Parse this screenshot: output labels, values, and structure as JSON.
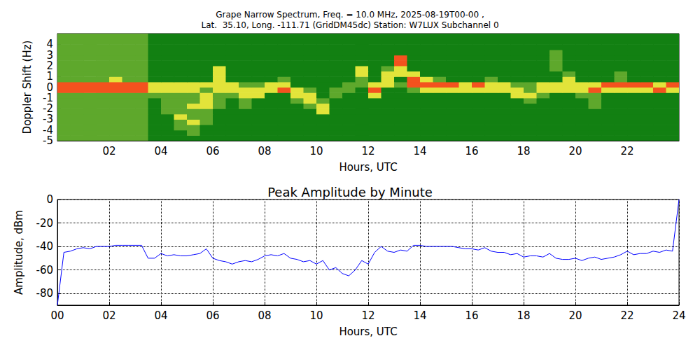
{
  "chart_data": [
    {
      "type": "heatmap",
      "title": "Grape Narrow Spectrum, Freq. = 10.0 MHz, 2025-08-19T00-00 ,",
      "subtitle": "Lat.  35.10, Long. -111.71 (GridDM45dc) Station: W7LUX Subchannel 0",
      "x_label": "Hours, UTC",
      "y_label": "Doppler Shift (Hz)",
      "x_bins": [
        0,
        0.5,
        1,
        1.5,
        2,
        2.5,
        3,
        3.5,
        4,
        4.5,
        5,
        5.5,
        6,
        6.5,
        7,
        7.5,
        8,
        8.5,
        9,
        9.5,
        10,
        10.5,
        11,
        11.5,
        12,
        12.5,
        13,
        13.5,
        14,
        14.5,
        15,
        15.5,
        16,
        16.5,
        17,
        17.5,
        18,
        18.5,
        19,
        19.5,
        20,
        20.5,
        21,
        21.5,
        22,
        22.5,
        23,
        23.5,
        24
      ],
      "y_bins": [
        -5,
        -4.5,
        -4,
        -3.5,
        -3,
        -2.5,
        -2,
        -1.5,
        -1,
        -0.5,
        0,
        0.5,
        1,
        1.5,
        2,
        2.5,
        3,
        3.5,
        4,
        4.5,
        5
      ],
      "cells": [
        [
          1,
          1,
          1,
          1,
          1,
          1,
          1,
          0,
          0,
          0,
          0,
          0,
          0,
          0,
          0,
          0,
          0,
          0,
          0,
          0,
          0,
          0,
          0,
          0,
          0,
          0,
          0,
          0,
          0,
          0,
          0,
          0,
          0,
          0,
          0,
          0,
          0,
          0,
          0,
          0,
          0,
          0,
          0,
          0,
          0,
          0,
          0,
          0
        ],
        [
          1,
          1,
          1,
          1,
          1,
          1,
          1,
          0,
          0,
          0,
          1,
          0,
          0,
          0,
          0,
          0,
          0,
          0,
          0,
          0,
          0,
          0,
          0,
          0,
          0,
          0,
          0,
          0,
          0,
          0,
          0,
          0,
          0,
          0,
          0,
          0,
          0,
          0,
          0,
          0,
          0,
          0,
          0,
          0,
          0,
          0,
          0,
          0
        ],
        [
          1,
          1,
          1,
          1,
          1,
          1,
          1,
          0,
          0,
          1,
          1,
          0,
          0,
          0,
          0,
          0,
          0,
          0,
          0,
          0,
          0,
          0,
          0,
          0,
          0,
          0,
          0,
          0,
          0,
          0,
          0,
          0,
          0,
          0,
          0,
          0,
          0,
          0,
          0,
          0,
          0,
          0,
          0,
          0,
          0,
          0,
          0,
          0
        ],
        [
          1,
          1,
          1,
          1,
          1,
          1,
          1,
          0,
          0,
          1,
          2,
          1,
          0,
          0,
          0,
          0,
          0,
          0,
          0,
          0,
          0,
          0,
          0,
          0,
          0,
          0,
          0,
          0,
          0,
          0,
          0,
          0,
          0,
          0,
          0,
          0,
          0,
          0,
          0,
          0,
          0,
          0,
          0,
          0,
          0,
          0,
          0,
          0
        ],
        [
          1,
          1,
          1,
          1,
          1,
          1,
          1,
          0,
          0,
          2,
          1,
          1,
          0,
          0,
          0,
          0,
          0,
          0,
          0,
          0,
          0,
          0,
          0,
          0,
          0,
          0,
          0,
          0,
          0,
          0,
          0,
          0,
          0,
          0,
          0,
          0,
          0,
          0,
          0,
          0,
          0,
          0,
          0,
          0,
          0,
          0,
          0,
          0
        ],
        [
          1,
          1,
          1,
          1,
          1,
          1,
          1,
          0,
          1,
          1,
          1,
          1,
          0,
          0,
          0,
          0,
          0,
          0,
          0,
          0,
          2,
          0,
          0,
          0,
          0,
          0,
          0,
          0,
          0,
          0,
          0,
          0,
          0,
          0,
          0,
          0,
          0,
          0,
          0,
          0,
          0,
          0,
          0,
          0,
          0,
          0,
          0,
          0
        ],
        [
          1,
          1,
          1,
          1,
          1,
          1,
          1,
          0,
          1,
          1,
          2,
          2,
          1,
          0,
          1,
          0,
          0,
          0,
          0,
          1,
          2,
          0,
          0,
          0,
          0,
          0,
          0,
          0,
          0,
          0,
          0,
          0,
          0,
          0,
          0,
          0,
          0,
          0,
          0,
          0,
          0,
          1,
          0,
          0,
          0,
          0,
          0,
          0
        ],
        [
          1,
          1,
          1,
          1,
          1,
          1,
          1,
          0,
          1,
          1,
          1,
          2,
          1,
          0,
          1,
          0,
          0,
          0,
          1,
          2,
          1,
          0,
          0,
          0,
          0,
          0,
          0,
          0,
          0,
          0,
          0,
          0,
          0,
          0,
          0,
          0,
          1,
          0,
          0,
          0,
          0,
          1,
          0,
          0,
          0,
          0,
          0,
          0
        ],
        [
          1,
          1,
          1,
          1,
          1,
          1,
          1,
          1,
          1,
          1,
          1,
          2,
          1,
          1,
          2,
          2,
          0,
          0,
          2,
          2,
          0,
          1,
          0,
          0,
          2,
          0,
          0,
          0,
          0,
          0,
          0,
          0,
          0,
          0,
          0,
          2,
          2,
          1,
          0,
          0,
          1,
          1,
          0,
          0,
          0,
          0,
          0,
          0
        ],
        [
          3,
          3,
          3,
          3,
          3,
          3,
          3,
          2,
          2,
          2,
          2,
          1,
          2,
          2,
          2,
          2,
          2,
          3,
          2,
          1,
          0,
          1,
          1,
          0,
          3,
          0,
          0,
          1,
          2,
          2,
          2,
          2,
          2,
          2,
          2,
          2,
          1,
          2,
          2,
          2,
          2,
          3,
          2,
          2,
          2,
          2,
          3,
          2
        ],
        [
          3,
          3,
          3,
          3,
          3,
          3,
          3,
          2,
          2,
          2,
          2,
          2,
          2,
          2,
          1,
          1,
          2,
          2,
          0,
          0,
          0,
          0,
          1,
          1,
          2,
          2,
          1,
          3,
          3,
          3,
          3,
          2,
          3,
          2,
          2,
          1,
          1,
          2,
          2,
          2,
          2,
          2,
          3,
          3,
          3,
          3,
          2,
          3
        ],
        [
          1,
          1,
          1,
          1,
          2,
          1,
          1,
          0,
          0,
          0,
          0,
          0,
          2,
          0,
          0,
          0,
          0,
          1,
          0,
          0,
          0,
          0,
          0,
          1,
          0,
          2,
          0,
          3,
          2,
          1,
          0,
          0,
          0,
          1,
          0,
          0,
          0,
          0,
          0,
          2,
          0,
          0,
          0,
          1,
          0,
          0,
          0,
          0
        ],
        [
          1,
          1,
          1,
          1,
          1,
          1,
          1,
          0,
          0,
          0,
          0,
          0,
          2,
          0,
          0,
          0,
          0,
          0,
          0,
          0,
          0,
          0,
          0,
          2,
          0,
          2,
          2,
          2,
          0,
          0,
          0,
          0,
          0,
          0,
          0,
          0,
          0,
          0,
          0,
          1,
          0,
          0,
          0,
          1,
          0,
          0,
          0,
          0
        ],
        [
          1,
          1,
          1,
          1,
          1,
          1,
          1,
          0,
          0,
          0,
          0,
          0,
          2,
          0,
          0,
          0,
          0,
          0,
          0,
          0,
          0,
          0,
          0,
          2,
          0,
          1,
          2,
          0,
          0,
          0,
          0,
          0,
          0,
          0,
          0,
          0,
          0,
          0,
          1,
          0,
          0,
          0,
          0,
          0,
          0,
          0,
          0,
          0
        ],
        [
          1,
          1,
          1,
          1,
          1,
          1,
          1,
          0,
          0,
          0,
          0,
          0,
          0,
          0,
          0,
          0,
          0,
          0,
          0,
          0,
          0,
          0,
          0,
          0,
          0,
          0,
          3,
          0,
          0,
          0,
          0,
          0,
          0,
          0,
          0,
          0,
          0,
          0,
          1,
          0,
          0,
          0,
          0,
          0,
          0,
          0,
          0,
          0
        ],
        [
          1,
          1,
          1,
          1,
          1,
          1,
          1,
          0,
          0,
          0,
          0,
          0,
          0,
          0,
          0,
          0,
          0,
          0,
          0,
          0,
          0,
          0,
          0,
          0,
          0,
          0,
          3,
          0,
          0,
          0,
          0,
          0,
          0,
          0,
          0,
          0,
          0,
          0,
          1,
          0,
          0,
          0,
          0,
          0,
          0,
          0,
          0,
          0
        ],
        [
          1,
          1,
          1,
          1,
          1,
          1,
          1,
          0,
          0,
          0,
          0,
          0,
          0,
          0,
          0,
          0,
          0,
          0,
          0,
          0,
          0,
          0,
          0,
          0,
          0,
          0,
          0,
          0,
          0,
          0,
          0,
          0,
          0,
          0,
          0,
          0,
          0,
          0,
          1,
          0,
          0,
          0,
          0,
          0,
          0,
          0,
          0,
          0
        ],
        [
          1,
          1,
          1,
          1,
          1,
          1,
          1,
          0,
          0,
          0,
          0,
          0,
          0,
          0,
          0,
          0,
          0,
          0,
          0,
          0,
          0,
          0,
          0,
          0,
          0,
          0,
          0,
          0,
          0,
          0,
          0,
          0,
          0,
          0,
          0,
          0,
          0,
          0,
          0,
          0,
          0,
          0,
          0,
          0,
          0,
          0,
          0,
          0
        ],
        [
          1,
          1,
          1,
          1,
          1,
          1,
          1,
          0,
          0,
          0,
          0,
          0,
          0,
          0,
          0,
          0,
          0,
          0,
          0,
          0,
          0,
          0,
          0,
          0,
          0,
          0,
          0,
          0,
          0,
          0,
          0,
          0,
          0,
          0,
          0,
          0,
          0,
          0,
          0,
          0,
          0,
          0,
          0,
          0,
          0,
          0,
          0,
          0
        ],
        [
          1,
          1,
          1,
          1,
          1,
          1,
          1,
          0,
          0,
          0,
          0,
          0,
          0,
          0,
          0,
          0,
          0,
          0,
          0,
          0,
          0,
          0,
          0,
          0,
          0,
          0,
          0,
          0,
          0,
          0,
          0,
          0,
          0,
          0,
          0,
          0,
          0,
          0,
          0,
          0,
          0,
          0,
          0,
          0,
          0,
          0,
          0,
          0
        ]
      ],
      "colors": [
        "#128012",
        "#5ea82c",
        "#e2e43a",
        "#f4521e"
      ],
      "xlim": [
        0,
        24
      ],
      "xticks": [
        {
          "value": 2,
          "label": "02"
        },
        {
          "value": 4,
          "label": "04"
        },
        {
          "value": 6,
          "label": "06"
        },
        {
          "value": 8,
          "label": "08"
        },
        {
          "value": 10,
          "label": "10"
        },
        {
          "value": 12,
          "label": "12"
        },
        {
          "value": 14,
          "label": "14"
        },
        {
          "value": 16,
          "label": "16"
        },
        {
          "value": 18,
          "label": "18"
        },
        {
          "value": 20,
          "label": "20"
        },
        {
          "value": 22,
          "label": "22"
        }
      ],
      "ylim": [
        -5,
        5
      ],
      "yticks": [
        -5,
        -4,
        -3,
        -2,
        -1,
        0,
        1,
        2,
        3,
        4
      ],
      "grid": false
    },
    {
      "type": "line",
      "title": "Peak Amplitude by Minute",
      "x_label": "Hours, UTC",
      "y_label": "Amplitude, dBm",
      "x": [
        0,
        0.25,
        0.5,
        0.75,
        1,
        1.25,
        1.5,
        1.75,
        2,
        2.25,
        2.5,
        2.75,
        3,
        3.25,
        3.5,
        3.75,
        4,
        4.25,
        4.5,
        4.75,
        5,
        5.25,
        5.5,
        5.75,
        6,
        6.25,
        6.5,
        6.75,
        7,
        7.25,
        7.5,
        7.75,
        8,
        8.25,
        8.5,
        8.75,
        9,
        9.25,
        9.5,
        9.75,
        10,
        10.25,
        10.5,
        10.75,
        11,
        11.25,
        11.5,
        11.75,
        12,
        12.25,
        12.5,
        12.75,
        13,
        13.25,
        13.5,
        13.75,
        14,
        14.25,
        14.5,
        14.75,
        15,
        15.25,
        15.5,
        15.75,
        16,
        16.25,
        16.5,
        16.75,
        17,
        17.25,
        17.5,
        17.75,
        18,
        18.25,
        18.5,
        18.75,
        19,
        19.25,
        19.5,
        19.75,
        20,
        20.25,
        20.5,
        20.75,
        21,
        21.25,
        21.5,
        21.75,
        22,
        22.25,
        22.5,
        22.75,
        23,
        23.25,
        23.5,
        23.75,
        24
      ],
      "values": [
        -90,
        -45,
        -44,
        -42,
        -41,
        -42,
        -40,
        -40,
        -40,
        -39,
        -39,
        -39,
        -39,
        -39,
        -50,
        -50,
        -46,
        -48,
        -47,
        -48,
        -48,
        -47,
        -46,
        -42,
        -50,
        -52,
        -53,
        -55,
        -53,
        -52,
        -53,
        -51,
        -48,
        -47,
        -48,
        -46,
        -50,
        -51,
        -53,
        -52,
        -55,
        -52,
        -60,
        -58,
        -63,
        -65,
        -60,
        -52,
        -55,
        -45,
        -40,
        -44,
        -45,
        -43,
        -44,
        -39,
        -39,
        -40,
        -40,
        -40,
        -40,
        -40,
        -41,
        -42,
        -42,
        -43,
        -41,
        -44,
        -45,
        -45,
        -47,
        -46,
        -49,
        -48,
        -48,
        -49,
        -46,
        -50,
        -51,
        -51,
        -50,
        -52,
        -50,
        -49,
        -51,
        -50,
        -49,
        -47,
        -44,
        -47,
        -46,
        -46,
        -44,
        -45,
        -43,
        -44,
        0
      ],
      "color": "#0000ff",
      "xlim": [
        0,
        24
      ],
      "xticks": [
        {
          "value": 0,
          "label": "00"
        },
        {
          "value": 2,
          "label": "02"
        },
        {
          "value": 4,
          "label": "04"
        },
        {
          "value": 6,
          "label": "06"
        },
        {
          "value": 8,
          "label": "08"
        },
        {
          "value": 10,
          "label": "10"
        },
        {
          "value": 12,
          "label": "12"
        },
        {
          "value": 14,
          "label": "14"
        },
        {
          "value": 16,
          "label": "16"
        },
        {
          "value": 18,
          "label": "18"
        },
        {
          "value": 20,
          "label": "20"
        },
        {
          "value": 22,
          "label": "22"
        },
        {
          "value": 24,
          "label": "24"
        }
      ],
      "ylim": [
        -90,
        0
      ],
      "yticks": [
        -80,
        -60,
        -40,
        -20,
        0
      ],
      "grid": true
    }
  ]
}
